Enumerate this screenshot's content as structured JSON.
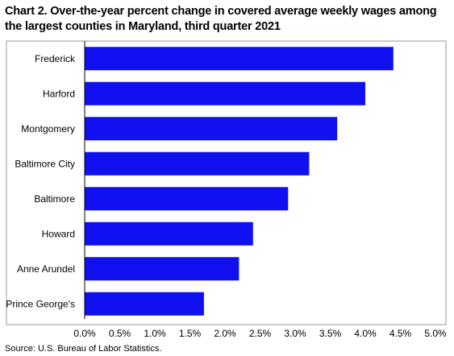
{
  "title": "Chart 2. Over-the-year percent change in covered average weekly wages among the largest counties in Maryland, third quarter 2021",
  "source": "Source: U.S. Bureau of Labor Statistics.",
  "colors": {
    "bar": "#1010f0",
    "axis": "#000000",
    "frame": "#9a9a9a"
  },
  "chart_data": {
    "type": "bar",
    "orientation": "horizontal",
    "title": "Chart 2. Over-the-year percent change in covered average weekly wages among the largest counties in Maryland, third quarter 2021",
    "xlabel": "",
    "ylabel": "",
    "categories": [
      "Frederick",
      "Harford",
      "Montgomery",
      "Baltimore City",
      "Baltimore",
      "Howard",
      "Anne Arundel",
      "Prince George's"
    ],
    "values": [
      4.4,
      4.0,
      3.6,
      3.2,
      2.9,
      2.4,
      2.2,
      1.7
    ],
    "xlim": [
      0,
      5
    ],
    "xticks": [
      "0.0%",
      "0.5%",
      "1.0%",
      "1.5%",
      "2.0%",
      "2.5%",
      "3.0%",
      "3.5%",
      "4.0%",
      "4.5%",
      "5.0%"
    ],
    "grid": false,
    "legend": "none"
  }
}
